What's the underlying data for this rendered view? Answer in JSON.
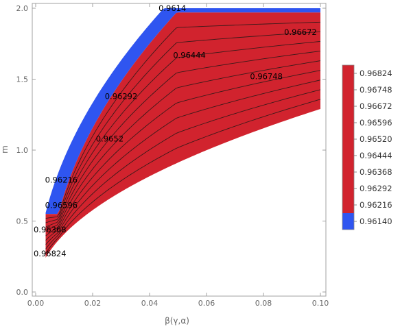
{
  "chart_data": {
    "type": "contour",
    "xlabel": "β(γ,α)",
    "ylabel": "m",
    "xlim": [
      0.0,
      0.1
    ],
    "ylim": [
      0.0,
      2.0
    ],
    "x_ticks": [
      "0.00",
      "0.02",
      "0.04",
      "0.06",
      "0.08",
      "0.10"
    ],
    "y_ticks": [
      "0.0",
      "0.5",
      "1.0",
      "1.5",
      "2.0"
    ],
    "region": {
      "x_min": 0.0035,
      "left_boundary_top_x": 0.045,
      "right_boundary_top_x": 0.1,
      "right_boundary_top_y": 2.0,
      "right_boundary_bottom_y": 1.29,
      "bottom_y_at_x_min": 0.25
    },
    "contour_labels": [
      {
        "text": "0.9614",
        "x": 0.048,
        "y": 2.0
      },
      {
        "text": "0.96672",
        "x": 0.093,
        "y": 1.83
      },
      {
        "text": "0.96444",
        "x": 0.054,
        "y": 1.67
      },
      {
        "text": "0.96748",
        "x": 0.081,
        "y": 1.52
      },
      {
        "text": "0.96292",
        "x": 0.03,
        "y": 1.38
      },
      {
        "text": "0.9652",
        "x": 0.026,
        "y": 1.08
      },
      {
        "text": "0.96216",
        "x": 0.009,
        "y": 0.79
      },
      {
        "text": "0.96596",
        "x": 0.009,
        "y": 0.61
      },
      {
        "text": "0.96368",
        "x": 0.005,
        "y": 0.44
      },
      {
        "text": "0.96824",
        "x": 0.005,
        "y": 0.27
      }
    ],
    "legend": {
      "entries": [
        "0.96824",
        "0.96748",
        "0.96672",
        "0.96596",
        "0.96520",
        "0.96444",
        "0.96368",
        "0.96292",
        "0.96216",
        "0.96140"
      ],
      "colors": [
        "#d1232e",
        "#d1232e",
        "#d1232e",
        "#d1232e",
        "#d1232e",
        "#d1232e",
        "#d1232e",
        "#d1232e",
        "#d1232e",
        "#2f55f0"
      ]
    },
    "colors": {
      "fill": "#d1232e",
      "band": "#2f55f0",
      "contour_line": "#3a1a1a",
      "frame": "#a0a0a0"
    }
  }
}
